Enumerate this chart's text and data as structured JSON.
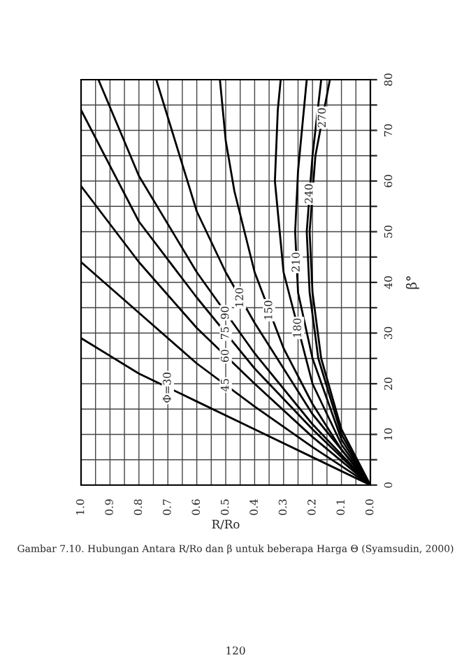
{
  "chart_data": {
    "type": "line",
    "xlabel": "R/Ro",
    "ylabel": "β°",
    "xlim": [
      1.0,
      0.0
    ],
    "ylim": [
      0,
      80
    ],
    "xticks": [
      {
        "value": 1.0,
        "label": "1.0"
      },
      {
        "value": 0.95,
        "label": null
      },
      {
        "value": 0.9,
        "label": "0.9"
      },
      {
        "value": 0.85,
        "label": null
      },
      {
        "value": 0.8,
        "label": "0.8"
      },
      {
        "value": 0.75,
        "label": null
      },
      {
        "value": 0.7,
        "label": "0.7"
      },
      {
        "value": 0.65,
        "label": null
      },
      {
        "value": 0.6,
        "label": "0.6"
      },
      {
        "value": 0.55,
        "label": null
      },
      {
        "value": 0.5,
        "label": "0.5"
      },
      {
        "value": 0.45,
        "label": null
      },
      {
        "value": 0.4,
        "label": "0.4"
      },
      {
        "value": 0.35,
        "label": null
      },
      {
        "value": 0.3,
        "label": "0.3"
      },
      {
        "value": 0.25,
        "label": null
      },
      {
        "value": 0.2,
        "label": "0.2"
      },
      {
        "value": 0.15,
        "label": null
      },
      {
        "value": 0.1,
        "label": "0.1"
      },
      {
        "value": 0.05,
        "label": null
      },
      {
        "value": 0.0,
        "label": "0.0"
      }
    ],
    "yticks": [
      0,
      {
        "value": 5,
        "label": null
      },
      10,
      {
        "value": 15,
        "label": null
      },
      20,
      {
        "value": 25,
        "label": null
      },
      30,
      {
        "value": 35,
        "label": null
      },
      40,
      {
        "value": 45,
        "label": null
      },
      50,
      {
        "value": 55,
        "label": null
      },
      60,
      {
        "value": 65,
        "label": null
      },
      70,
      {
        "value": 75,
        "label": null
      },
      80
    ],
    "grid": true,
    "legend": false,
    "marker": "none",
    "line_style": "solid",
    "series": [
      {
        "name": "Φ=30",
        "color": "#000000",
        "x": [
          0,
          0.2,
          0.4,
          0.6,
          0.8,
          1.0
        ],
        "values": [
          0,
          5.5,
          11,
          16.5,
          22,
          29
        ]
      },
      {
        "name": "45",
        "color": "#000000",
        "x": [
          0,
          0.2,
          0.4,
          0.6,
          0.8,
          1.0
        ],
        "values": [
          0,
          7.5,
          15.5,
          24,
          34,
          44
        ]
      },
      {
        "name": "60",
        "color": "#000000",
        "x": [
          0,
          0.2,
          0.4,
          0.6,
          0.8,
          1.0
        ],
        "values": [
          0,
          9.5,
          20,
          31,
          44,
          59
        ]
      },
      {
        "name": "75",
        "color": "#000000",
        "x": [
          0,
          0.2,
          0.4,
          0.6,
          0.8,
          1.0
        ],
        "values": [
          0,
          11,
          23,
          37,
          52,
          74
        ]
      },
      {
        "name": "90",
        "color": "#000000",
        "x": [
          0,
          0.2,
          0.4,
          0.6,
          0.8,
          0.94
        ],
        "values": [
          0,
          12,
          26,
          42,
          61,
          80
        ]
      },
      {
        "name": "120",
        "color": "#000000",
        "x": [
          0,
          0.2,
          0.4,
          0.5,
          0.6,
          0.74
        ],
        "values": [
          0,
          14,
          32,
          42,
          54,
          80
        ]
      },
      {
        "name": "150",
        "color": "#000000",
        "x": [
          0,
          0.1,
          0.2,
          0.3,
          0.4,
          0.47,
          0.5,
          0.52
        ],
        "values": [
          0,
          7,
          16,
          27,
          42,
          58,
          68,
          80
        ]
      },
      {
        "name": "180",
        "color": "#000000",
        "x": [
          0,
          0.1,
          0.2,
          0.3,
          0.33,
          0.32,
          0.31
        ],
        "values": [
          0,
          8,
          20,
          42,
          60,
          74,
          80
        ]
      },
      {
        "name": "210",
        "color": "#000000",
        "x": [
          0,
          0.1,
          0.2,
          0.25,
          0.26,
          0.25,
          0.22
        ],
        "values": [
          0,
          9,
          25,
          38,
          50,
          62,
          80
        ]
      },
      {
        "name": "240",
        "color": "#000000",
        "x": [
          0,
          0.1,
          0.18,
          0.21,
          0.22,
          0.2,
          0.17
        ],
        "values": [
          0,
          10,
          25,
          38,
          50,
          65,
          80
        ]
      },
      {
        "name": "270",
        "color": "#000000",
        "x": [
          0,
          0.1,
          0.17,
          0.2,
          0.21,
          0.19,
          0.14
        ],
        "values": [
          0,
          11,
          25,
          38,
          50,
          65,
          80
        ]
      }
    ],
    "annotations": [
      "Gambar 7.10. Hubungan Antara R/Ro dan β untuk beberapa Harga Θ (Syamsudin, 2000)",
      "120"
    ]
  }
}
